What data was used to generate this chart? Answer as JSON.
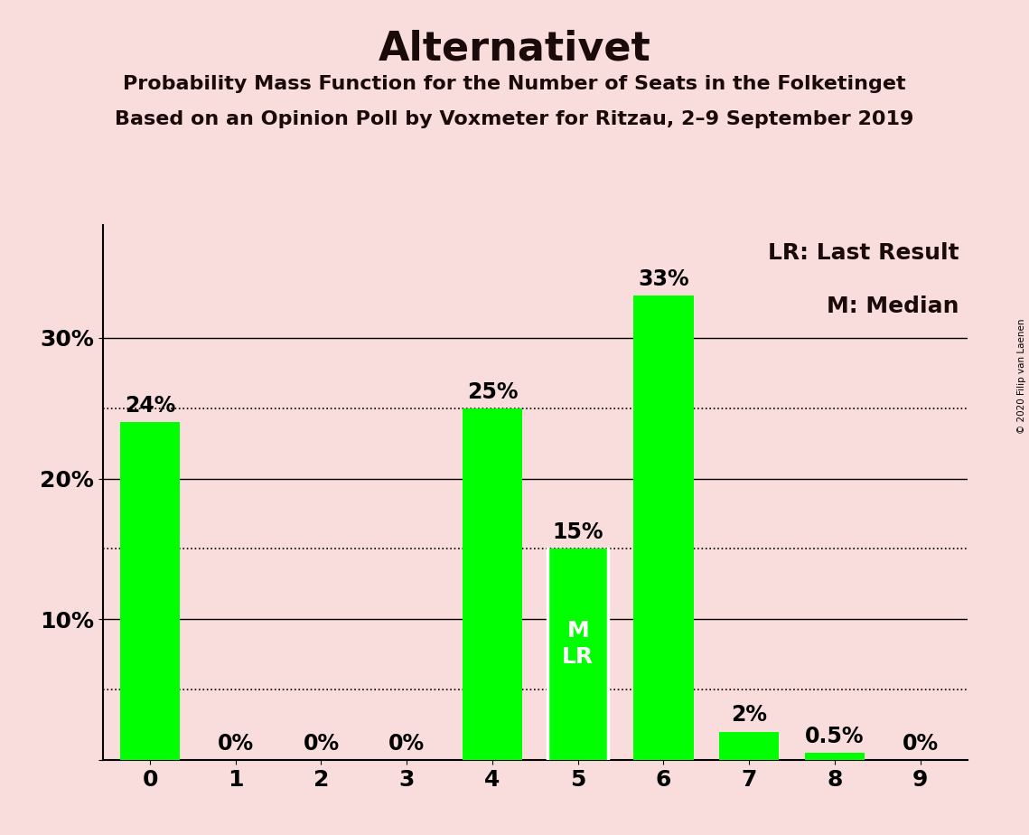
{
  "title": "Alternativet",
  "subtitle1": "Probability Mass Function for the Number of Seats in the Folketinget",
  "subtitle2": "Based on an Opinion Poll by Voxmeter for Ritzau, 2–9 September 2019",
  "copyright": "© 2020 Filip van Laenen",
  "categories": [
    0,
    1,
    2,
    3,
    4,
    5,
    6,
    7,
    8,
    9
  ],
  "values": [
    0.24,
    0.0,
    0.0,
    0.0,
    0.25,
    0.15,
    0.33,
    0.02,
    0.005,
    0.0
  ],
  "bar_labels": [
    "24%",
    "0%",
    "0%",
    "0%",
    "25%",
    "15%",
    "33%",
    "2%",
    "0.5%",
    "0%"
  ],
  "bar_color": "#00FF00",
  "background_color": "#F9DCDC",
  "median": 5,
  "last_result": 5,
  "legend_lr": "LR: Last Result",
  "legend_m": "M: Median",
  "ylim": [
    0,
    0.38
  ],
  "yticks": [
    0.0,
    0.1,
    0.2,
    0.3
  ],
  "ytick_labels": [
    "",
    "10%",
    "20%",
    "30%"
  ],
  "dotted_lines": [
    0.05,
    0.15,
    0.25
  ],
  "solid_lines": [
    0.1,
    0.2,
    0.3
  ],
  "title_fontsize": 32,
  "subtitle_fontsize": 16,
  "tick_fontsize": 18,
  "bar_label_fontsize": 17,
  "annotation_fontsize": 18,
  "legend_fontsize": 18,
  "bar_width": 0.7
}
